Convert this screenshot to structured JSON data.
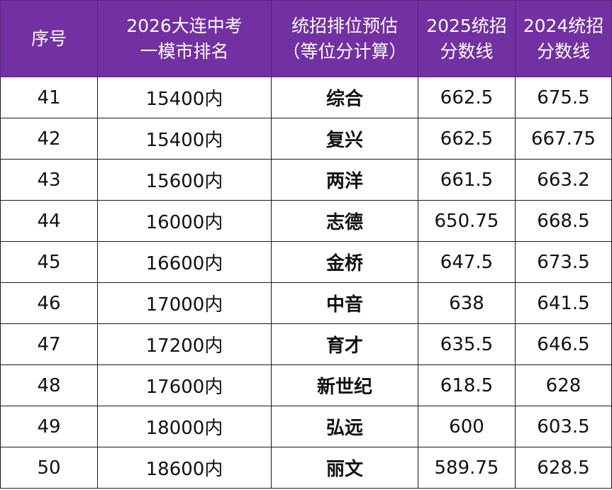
{
  "headers": {
    "seq": "序号",
    "rank_line1": "2026大连中考",
    "rank_line2": "一模市排名",
    "school_line1": "统招排位预估",
    "school_line2": "（等位分计算）",
    "score2025_line1": "2025统招",
    "score2025_line2": "分数线",
    "score2024_line1": "2024统招",
    "score2024_line2": "分数线"
  },
  "rows": [
    {
      "seq": "41",
      "rank": "15400内",
      "school": "综合",
      "score2025": "662.5",
      "score2024": "675.5"
    },
    {
      "seq": "42",
      "rank": "15400内",
      "school": "复兴",
      "score2025": "662.5",
      "score2024": "667.75"
    },
    {
      "seq": "43",
      "rank": "15600内",
      "school": "两洋",
      "score2025": "661.5",
      "score2024": "663.2"
    },
    {
      "seq": "44",
      "rank": "16000内",
      "school": "志德",
      "score2025": "650.75",
      "score2024": "668.5"
    },
    {
      "seq": "45",
      "rank": "16600内",
      "school": "金桥",
      "score2025": "647.5",
      "score2024": "673.5"
    },
    {
      "seq": "46",
      "rank": "17000内",
      "school": "中音",
      "score2025": "638",
      "score2024": "641.5"
    },
    {
      "seq": "47",
      "rank": "17200内",
      "school": "育才",
      "score2025": "635.5",
      "score2024": "646.5"
    },
    {
      "seq": "48",
      "rank": "17600内",
      "school": "新世纪",
      "score2025": "618.5",
      "score2024": "628"
    },
    {
      "seq": "49",
      "rank": "18000内",
      "school": "弘远",
      "score2025": "600",
      "score2024": "603.5"
    },
    {
      "seq": "50",
      "rank": "18600内",
      "school": "丽文",
      "score2025": "589.75",
      "score2024": "628.5"
    }
  ],
  "colors": {
    "header_bg": "#7230a3",
    "header_text": "#ffffff",
    "border": "#1a1a1a"
  }
}
